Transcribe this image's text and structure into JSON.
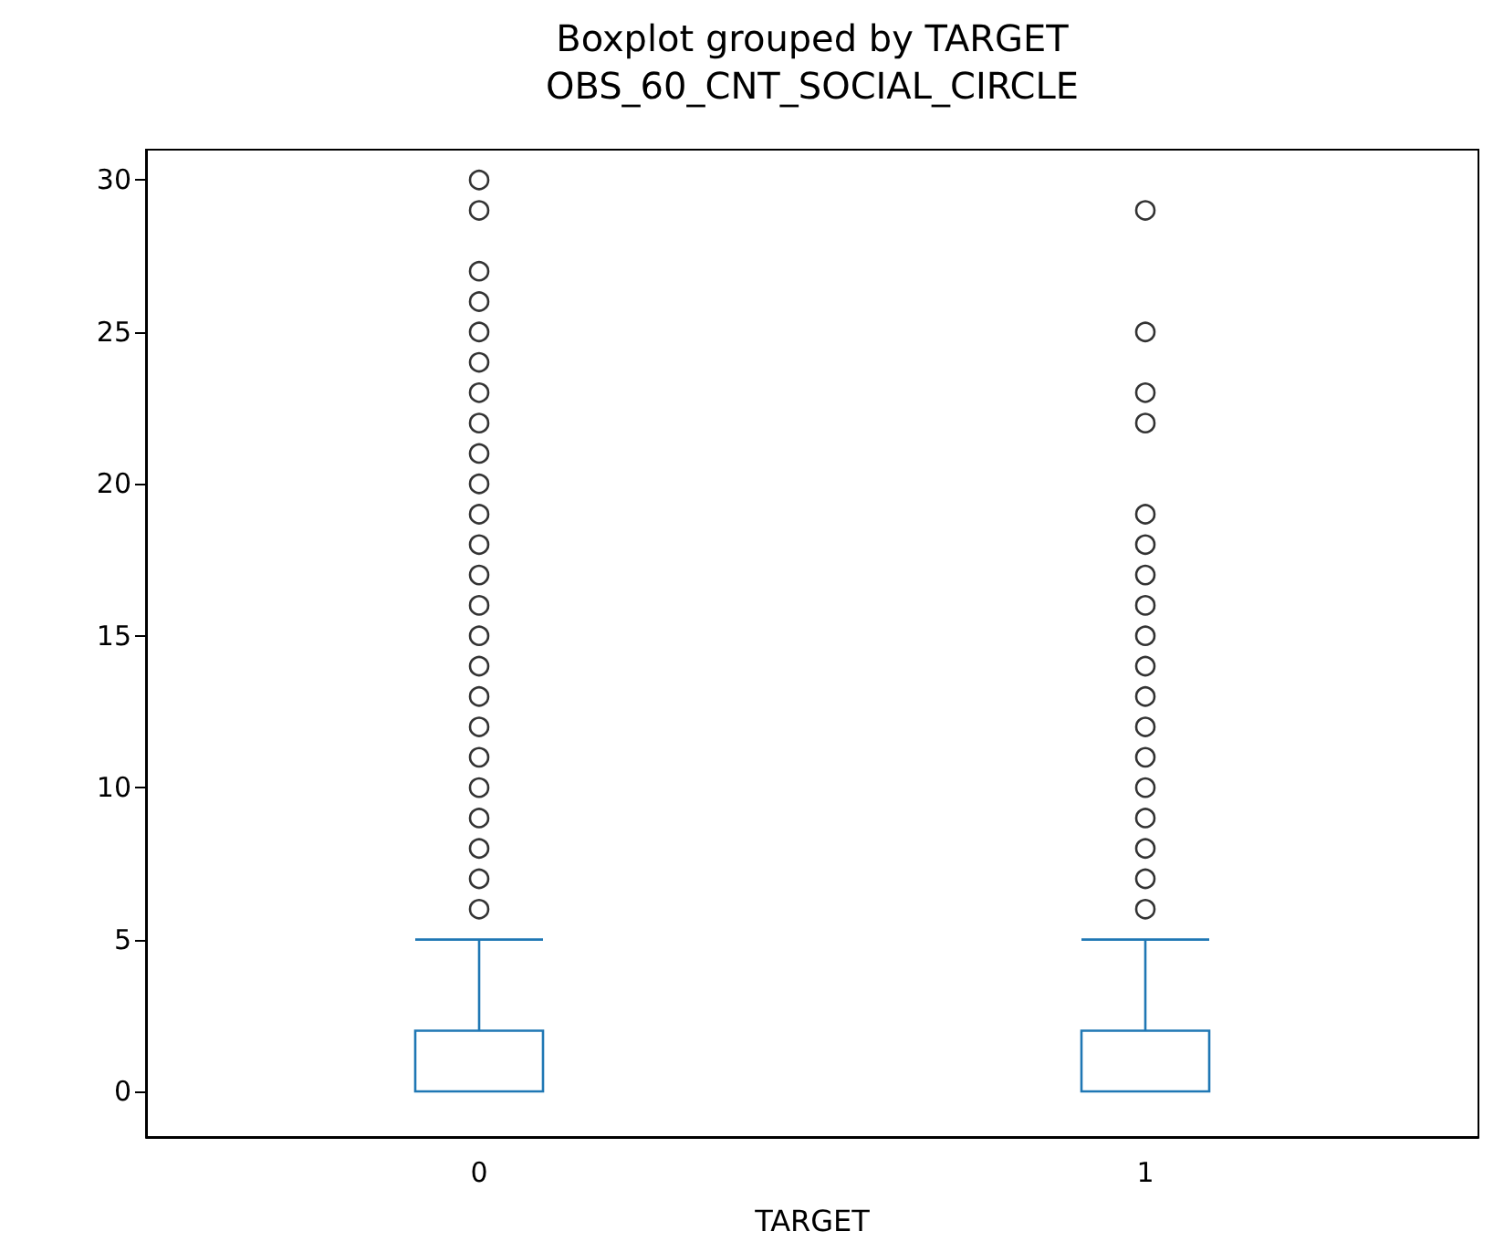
{
  "chart_data": {
    "type": "box",
    "title": "Boxplot grouped by TARGET",
    "subtitle": "OBS_60_CNT_SOCIAL_CIRCLE",
    "xlabel": "TARGET",
    "categories": [
      "0",
      "1"
    ],
    "color": "#1f77b4",
    "boxes": [
      {
        "low": 0,
        "q1": 0,
        "median": 0,
        "q3": 2,
        "high": 5,
        "outliers": [
          6,
          7,
          8,
          9,
          10,
          11,
          12,
          13,
          14,
          15,
          16,
          17,
          18,
          19,
          20,
          21,
          22,
          23,
          24,
          25,
          26,
          27,
          29,
          30
        ]
      },
      {
        "low": 0,
        "q1": 0,
        "median": 0,
        "q3": 2,
        "high": 5,
        "outliers": [
          6,
          7,
          8,
          9,
          10,
          11,
          12,
          13,
          14,
          15,
          16,
          17,
          18,
          19,
          22,
          23,
          25,
          29
        ]
      }
    ],
    "ylim": [
      -1.5,
      31
    ],
    "yticks": [
      0,
      5,
      10,
      15,
      20,
      25,
      30
    ],
    "grid": false,
    "marker": "circle"
  }
}
